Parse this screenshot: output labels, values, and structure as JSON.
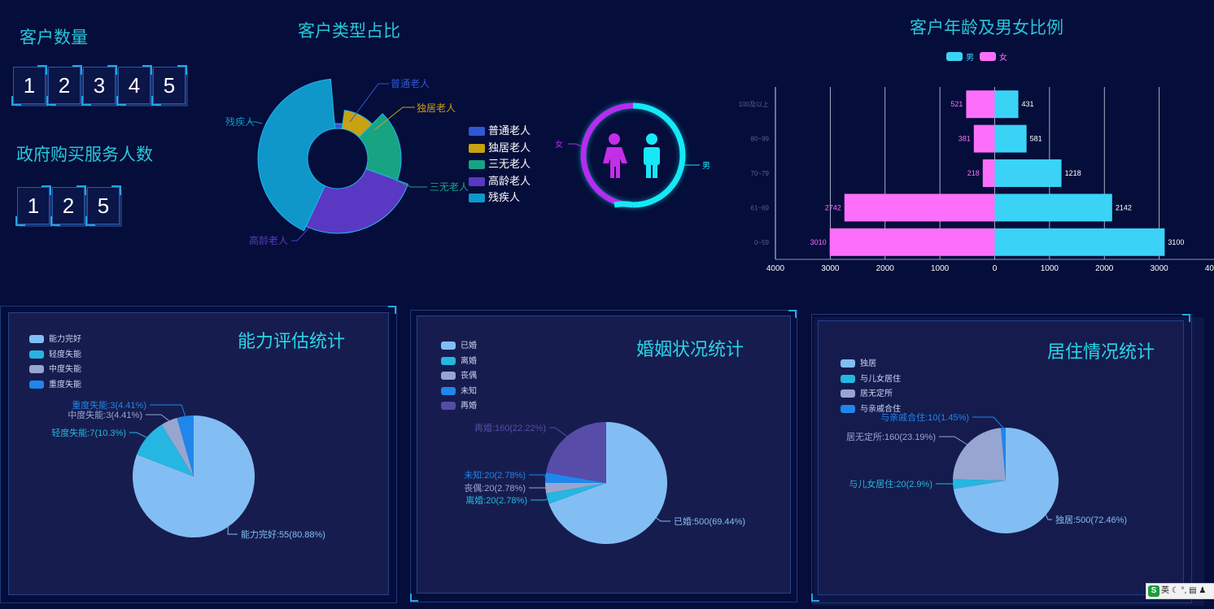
{
  "customer_count": {
    "title": "客户数量",
    "digits": [
      "1",
      "2",
      "3",
      "4",
      "5"
    ]
  },
  "gov_count": {
    "title": "政府购买服务人数",
    "digits": [
      "1",
      "2",
      "5"
    ]
  },
  "customer_type": {
    "title": "客户类型占比",
    "legend": [
      "普通老人",
      "独居老人",
      "三无老人",
      "高龄老人",
      "残疾人"
    ],
    "labels": [
      "普通老人",
      "独居老人",
      "三无老人",
      "高龄老人",
      "残疾人"
    ],
    "colors": [
      "#2f58d6",
      "#c9a210",
      "#18a383",
      "#5b38c4",
      "#0f97c9"
    ]
  },
  "gender": {
    "female": "女",
    "male": "男"
  },
  "age_chart": {
    "title": "客户年龄及男女比例",
    "legend": {
      "male": "男",
      "female": "女"
    },
    "colors": {
      "male": "#3ad3f6",
      "female": "#fd6ffb"
    },
    "x_ticks": [
      "4000",
      "3000",
      "2000",
      "1000",
      "0",
      "1000",
      "2000",
      "3000",
      "4000"
    ],
    "chart_data": {
      "type": "bar",
      "categories": [
        "0~59",
        "61~69",
        "70~79",
        "80~99",
        "100及以上"
      ],
      "series": [
        {
          "name": "男",
          "values": [
            3100,
            2142,
            1218,
            581,
            431
          ]
        },
        {
          "name": "女",
          "values": [
            3010,
            2742,
            218,
            381,
            521
          ]
        }
      ],
      "xlim": [
        -4000,
        4000
      ]
    }
  },
  "ability_panel": {
    "title": "能力评估统计",
    "legend": [
      "能力完好",
      "轻度失能",
      "中度失能",
      "重度失能"
    ],
    "colors": [
      "#82bef3",
      "#25b6e1",
      "#97a6d0",
      "#1f86ec"
    ],
    "labels": [
      "能力完好:55(80.88%)",
      "轻度失能:7(10.3%)",
      "中度失能:3(4.41%)",
      "重度失能:3(4.41%)"
    ],
    "chart_data": {
      "type": "pie",
      "categories": [
        "能力完好",
        "轻度失能",
        "中度失能",
        "重度失能"
      ],
      "values": [
        55,
        7,
        3,
        3
      ]
    }
  },
  "marriage_panel": {
    "title": "婚姻状况统计",
    "legend": [
      "已婚",
      "离婚",
      "丧偶",
      "未知",
      "再婚"
    ],
    "colors": [
      "#82bef3",
      "#25b6e1",
      "#97a6d0",
      "#1f86ec",
      "#574ca8"
    ],
    "labels": [
      "已婚:500(69.44%)",
      "离婚:20(2.78%)",
      "丧偶:20(2.78%)",
      "未知:20(2.78%)",
      "再婚:160(22.22%)"
    ],
    "chart_data": {
      "type": "pie",
      "categories": [
        "已婚",
        "离婚",
        "丧偶",
        "未知",
        "再婚"
      ],
      "values": [
        500,
        20,
        20,
        20,
        160
      ]
    }
  },
  "living_panel": {
    "title": "居住情况统计",
    "legend": [
      "独居",
      "与儿女居住",
      "居无定所",
      "与亲戚合住"
    ],
    "colors": [
      "#82bef3",
      "#25b6e1",
      "#97a6d0",
      "#1f86ec"
    ],
    "labels": [
      "独居:500(72.46%)",
      "与儿女居住:20(2.9%)",
      "居无定所:160(23.19%)",
      "与亲戚合住:10(1.45%)"
    ],
    "chart_data": {
      "type": "pie",
      "categories": [
        "独居",
        "与儿女居住",
        "居无定所",
        "与亲戚合住"
      ],
      "values": [
        500,
        20,
        160,
        10
      ]
    }
  },
  "tray": {
    "lang": "英"
  }
}
